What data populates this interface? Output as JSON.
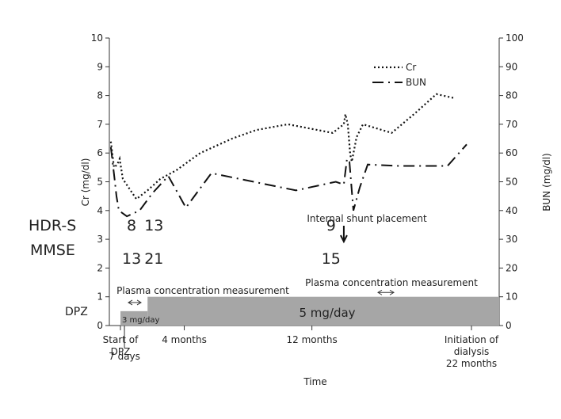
{
  "chart_data": {
    "type": "line",
    "xlabel": "Time",
    "ylabel_left": "Cr (mg/dl)",
    "ylabel_right": "BUN (mg/dl)",
    "ylim_left": [
      0,
      10
    ],
    "ylim_right": [
      0,
      100
    ],
    "yticks_left": [
      "0",
      "1",
      "2",
      "3",
      "4",
      "5",
      "6",
      "7",
      "8",
      "9",
      "10"
    ],
    "yticks_right": [
      "0",
      "10",
      "20",
      "30",
      "40",
      "50",
      "60",
      "70",
      "80",
      "90",
      "100"
    ],
    "xlim_months": [
      0,
      22
    ],
    "x_ticks": [
      {
        "month": 0,
        "label": "Start of\nDPZ"
      },
      {
        "month": 0.25,
        "label": "7 days"
      },
      {
        "month": 4,
        "label": "4 months"
      },
      {
        "month": 12,
        "label": "12 months"
      },
      {
        "month": 22,
        "label": "Initiation of\ndialysis\n22 months"
      }
    ],
    "legend": [
      "Cr",
      "BUN"
    ],
    "legend_position": "top-right",
    "series": [
      {
        "name": "Cr",
        "axis": "left",
        "style": "dotted",
        "points": [
          [
            -0.6,
            6.4
          ],
          [
            -0.4,
            5.5
          ],
          [
            -0.2,
            5.6
          ],
          [
            -0.05,
            5.8
          ],
          [
            0.15,
            5.1
          ],
          [
            1.0,
            4.4
          ],
          [
            1.7,
            4.7
          ],
          [
            2.5,
            5.1
          ],
          [
            3.5,
            5.4
          ],
          [
            5.0,
            6.0
          ],
          [
            7.0,
            6.5
          ],
          [
            8.5,
            6.8
          ],
          [
            10.5,
            7.0
          ],
          [
            13.3,
            6.7
          ],
          [
            14.0,
            7.0
          ],
          [
            14.1,
            7.35
          ],
          [
            14.25,
            7.0
          ],
          [
            14.4,
            5.95
          ],
          [
            14.5,
            5.7
          ],
          [
            14.8,
            6.55
          ],
          [
            15.2,
            7.0
          ],
          [
            17.0,
            6.7
          ],
          [
            18.5,
            7.4
          ],
          [
            19.8,
            8.05
          ],
          [
            21.0,
            7.9
          ]
        ]
      },
      {
        "name": "BUN",
        "axis": "right",
        "style": "dash-dot",
        "points": [
          [
            -0.6,
            62
          ],
          [
            -0.45,
            55
          ],
          [
            -0.35,
            50
          ],
          [
            -0.25,
            45
          ],
          [
            -0.1,
            40
          ],
          [
            0.4,
            38
          ],
          [
            1.2,
            40
          ],
          [
            2.0,
            46
          ],
          [
            3.0,
            52
          ],
          [
            4.1,
            41
          ],
          [
            5.7,
            53
          ],
          [
            11.0,
            47
          ],
          [
            13.5,
            50
          ],
          [
            14.0,
            49
          ],
          [
            14.2,
            58
          ],
          [
            14.35,
            57
          ],
          [
            14.6,
            40
          ],
          [
            15.0,
            48
          ],
          [
            15.5,
            56
          ],
          [
            17.5,
            55.5
          ],
          [
            20.5,
            55.5
          ],
          [
            21.7,
            63
          ]
        ]
      }
    ],
    "annotations": {
      "row_labels": [
        "HDR-S",
        "MMSE"
      ],
      "scores": [
        {
          "month": 0.7,
          "hdrs": "8",
          "mmse": "13"
        },
        {
          "month": 2.1,
          "hdrs": "13",
          "mmse": "21"
        },
        {
          "month": 13.2,
          "hdrs": "9",
          "mmse": "15"
        }
      ],
      "internal_shunt": "Internal shunt placement",
      "plasma_measurement_1": "Plasma concentration measurement",
      "plasma_measurement_2": "Plasma concentration measurement",
      "dpz_label": "DPZ",
      "dose_low": "3 mg/day",
      "dose_high": "5 mg/day"
    }
  }
}
